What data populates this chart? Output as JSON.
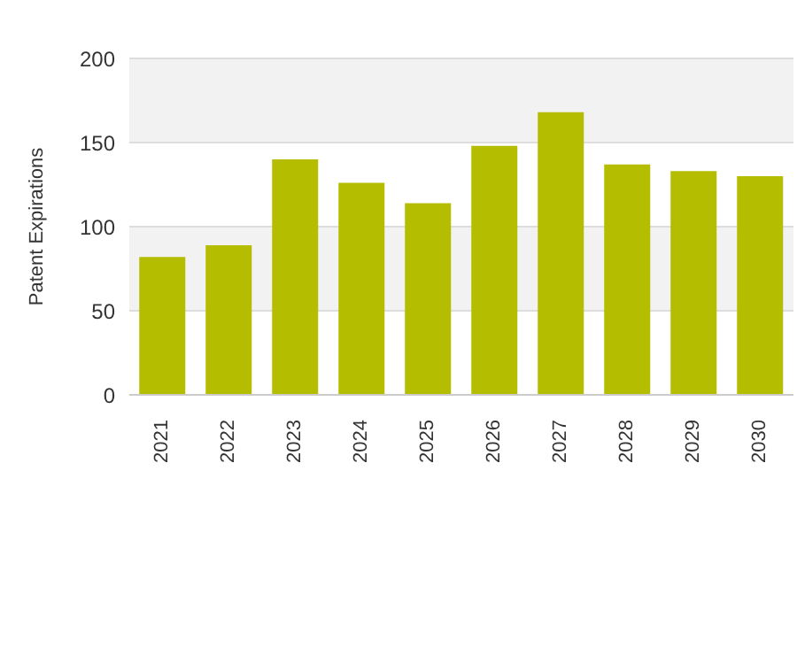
{
  "chart_data": {
    "type": "bar",
    "ylabel": "Patent Expirations",
    "categories": [
      "2021",
      "2022",
      "2023",
      "2024",
      "2025",
      "2026",
      "2027",
      "2028",
      "2029",
      "2030"
    ],
    "values": [
      82,
      89,
      140,
      126,
      114,
      148,
      168,
      137,
      133,
      130
    ],
    "color": "#b5bd00",
    "ylim": [
      0,
      200
    ],
    "yticks": [
      0,
      50,
      100,
      150,
      200
    ],
    "grid": "y"
  }
}
